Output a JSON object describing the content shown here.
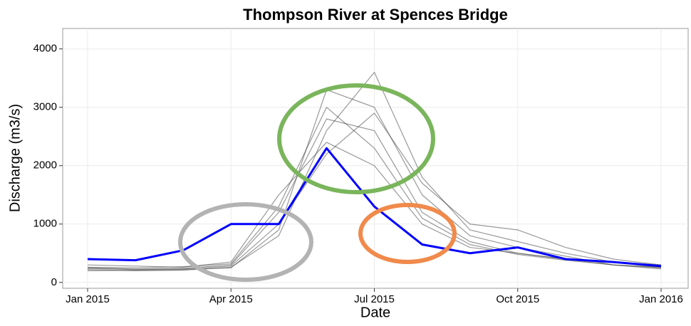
{
  "chart_data": {
    "type": "line",
    "title": "Thompson River at Spences Bridge",
    "x_label": "Date",
    "y_label": "Discharge (m3/s)",
    "x": [
      "2015-01",
      "2015-02",
      "2015-03",
      "2015-04",
      "2015-05",
      "2015-06",
      "2015-07",
      "2015-08",
      "2015-09",
      "2015-10",
      "2015-11",
      "2015-12",
      "2016-01"
    ],
    "xlim": [
      "2015-01",
      "2016-01"
    ],
    "xticks": [
      {
        "value": "2015-01",
        "label": "Jan 2015"
      },
      {
        "value": "2015-04",
        "label": "Apr 2015"
      },
      {
        "value": "2015-07",
        "label": "Jul 2015"
      },
      {
        "value": "2015-10",
        "label": "Oct 2015"
      },
      {
        "value": "2016-01",
        "label": "Jan 2016"
      }
    ],
    "ylim": [
      -100,
      4350
    ],
    "yticks": [
      0,
      1000,
      2000,
      3000,
      4000
    ],
    "grid": true,
    "series": [
      {
        "color": "#333333",
        "values": [
          250,
          230,
          240,
          300,
          1200,
          2800,
          2600,
          1200,
          700,
          500,
          400,
          300,
          250
        ]
      },
      {
        "color": "#333333",
        "values": [
          200,
          210,
          220,
          250,
          900,
          3300,
          3000,
          1500,
          800,
          600,
          450,
          300,
          230
        ]
      },
      {
        "color": "#333333",
        "values": [
          300,
          280,
          260,
          350,
          1500,
          2400,
          2000,
          1000,
          600,
          500,
          400,
          350,
          300
        ]
      },
      {
        "color": "#333333",
        "values": [
          220,
          200,
          210,
          260,
          800,
          2600,
          3600,
          1800,
          900,
          700,
          500,
          350,
          250
        ]
      },
      {
        "color": "#333333",
        "values": [
          260,
          250,
          270,
          320,
          1300,
          3000,
          2300,
          1100,
          650,
          480,
          380,
          300,
          260
        ]
      },
      {
        "color": "#333333",
        "values": [
          240,
          220,
          230,
          280,
          1000,
          2200,
          2900,
          1700,
          1000,
          900,
          600,
          400,
          300
        ]
      },
      {
        "color": "#0000ff",
        "values": [
          400,
          380,
          550,
          1000,
          1000,
          2300,
          1300,
          650,
          500,
          600,
          400,
          350,
          280
        ]
      }
    ]
  }
}
